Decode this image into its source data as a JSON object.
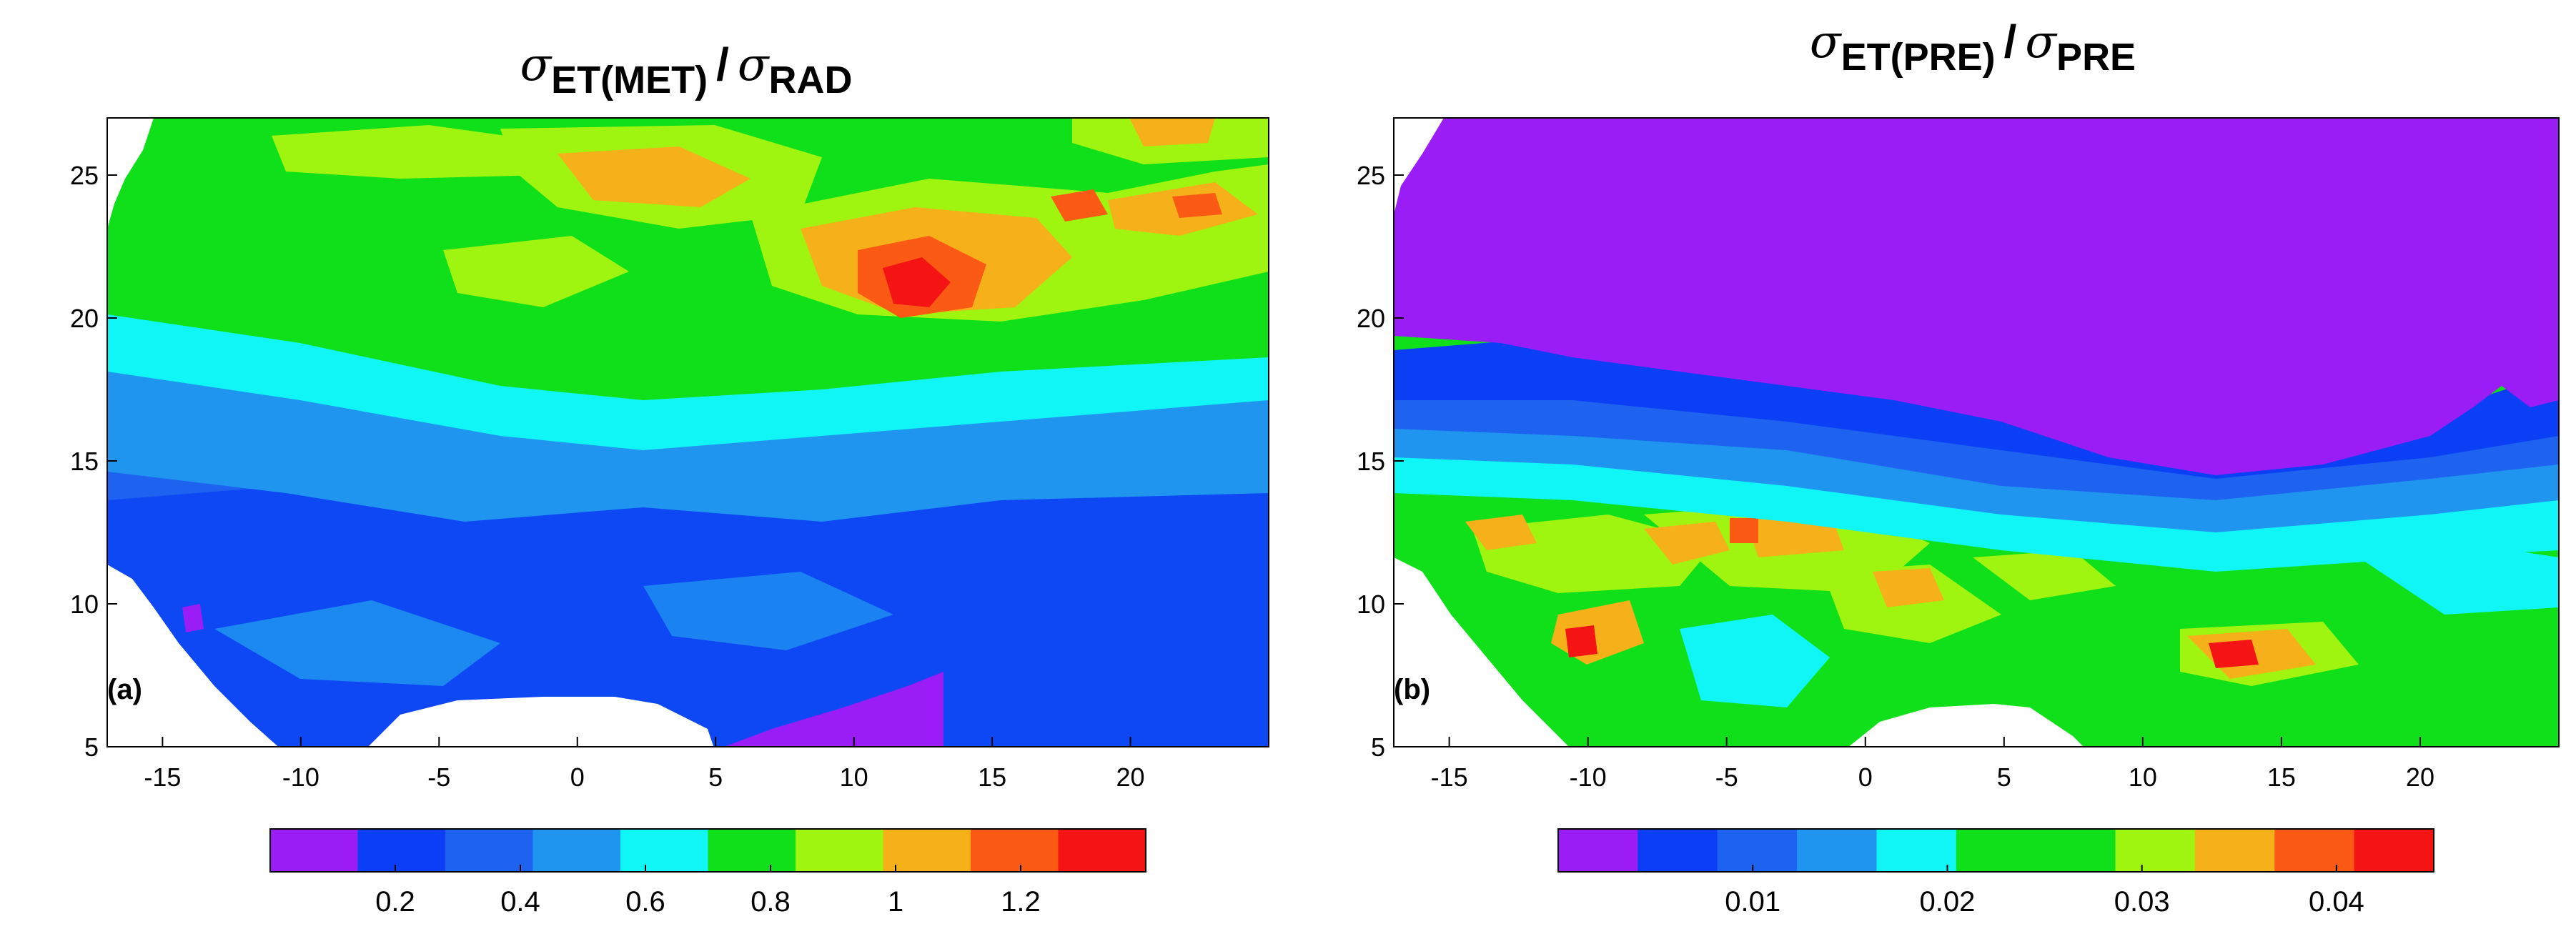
{
  "chart_data": [
    {
      "type": "heatmap",
      "panel_label": "(a)",
      "title": {
        "sigma": "σ",
        "numerator_sub": "ET(MET)",
        "slash": "/",
        "denominator_sub": "RAD"
      },
      "x": {
        "range": [
          -17,
          25
        ],
        "ticks": [
          -15,
          -10,
          -5,
          0,
          5,
          10,
          15,
          20
        ],
        "tick_labels": [
          "-15",
          "-10",
          "-5",
          "0",
          "5",
          "10",
          "15",
          "20"
        ]
      },
      "y": {
        "range": [
          5,
          27
        ],
        "ticks": [
          5,
          10,
          15,
          20,
          25
        ],
        "tick_labels": [
          "5",
          "10",
          "15",
          "20",
          "25"
        ]
      },
      "colorbar": {
        "range": [
          0,
          1.4
        ],
        "colors": [
          "#9b1df5",
          "#0a3ff5",
          "#1e62f0",
          "#1f95f0",
          "#10f5f5",
          "#10e01a",
          "#9ff510",
          "#f5b01a",
          "#fa5a14",
          "#f51414"
        ],
        "ticks": [
          0.2,
          0.4,
          0.6,
          0.8,
          1,
          1.2
        ],
        "tick_labels": [
          "0.2",
          "0.4",
          "0.6",
          "0.8",
          "1",
          "1.2"
        ]
      },
      "pattern": "High ratio (0.9-1.3) in the Sahara north of ~17°N, peaking near 12-17°E, 20-23°N; transition to 0.5-0.6 around 15-17°N; low values (0.2-0.5) across the Sahel and Guinea coast south of ~15°N"
    },
    {
      "type": "heatmap",
      "panel_label": "(b)",
      "title": {
        "sigma": "σ",
        "numerator_sub": "ET(PRE)",
        "slash": "/",
        "denominator_sub": "PRE"
      },
      "x": {
        "range": [
          -17,
          25
        ],
        "ticks": [
          -15,
          -10,
          -5,
          0,
          5,
          10,
          15,
          20
        ],
        "tick_labels": [
          "-15",
          "-10",
          "-5",
          "0",
          "5",
          "10",
          "15",
          "20"
        ]
      },
      "y": {
        "range": [
          5,
          27
        ],
        "ticks": [
          5,
          10,
          15,
          20,
          25
        ],
        "tick_labels": [
          "5",
          "10",
          "15",
          "20",
          "25"
        ]
      },
      "colorbar": {
        "range": [
          0,
          0.045
        ],
        "colors": [
          "#9b1df5",
          "#0a3ff5",
          "#1e62f0",
          "#1f95f0",
          "#10f5f5",
          "#10e01a",
          "#10e01a",
          "#9ff510",
          "#f5b01a",
          "#fa5a14",
          "#f51414"
        ],
        "ticks": [
          0.01,
          0.02,
          0.03,
          0.04
        ],
        "tick_labels": [
          "0.01",
          "0.02",
          "0.03",
          "0.04"
        ]
      },
      "pattern": "Near-zero ratio over the Sahara north of ~16-18°N; sharp blue band of 0.005-0.01 along ~15-17°N; 0.02-0.03 over the Sahel and Guinea region with local maxima of 0.035-0.045 near -10°E 8°N, 0°E 12°N and 12-13°E 8°N"
    }
  ]
}
